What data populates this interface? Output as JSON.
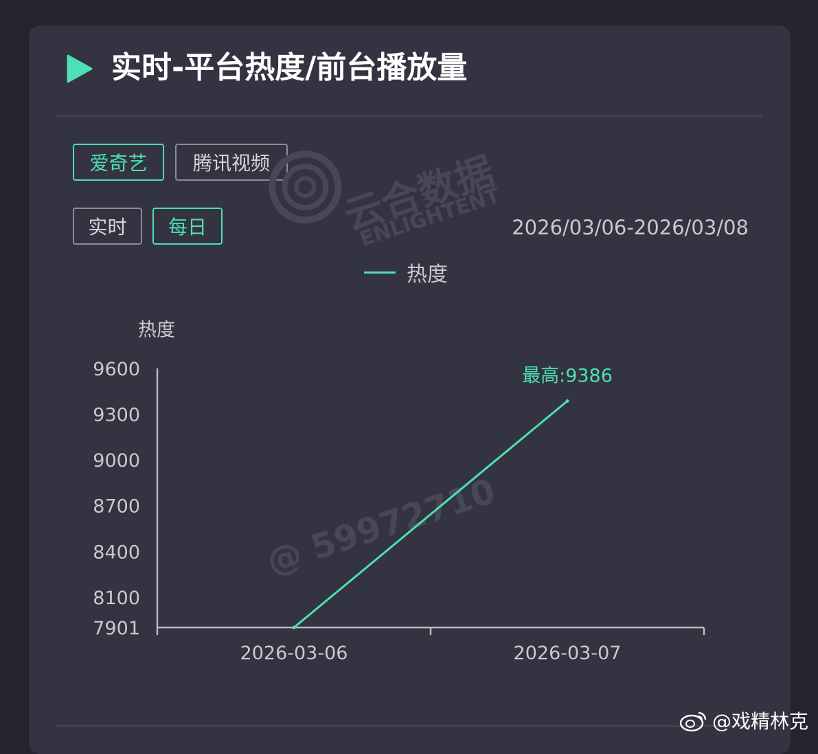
{
  "header": {
    "title": "实时-平台热度/前台播放量"
  },
  "platform_tabs": [
    {
      "label": "爱奇艺",
      "active": true
    },
    {
      "label": "腾讯视频",
      "active": false
    }
  ],
  "period_tabs": [
    {
      "label": "实时",
      "active": false
    },
    {
      "label": "每日",
      "active": true
    }
  ],
  "date_range": "2026/03/06-2026/03/08",
  "watermark": {
    "brand": "云合数据",
    "brand_en": "ENLIGHTENT",
    "user_id": "@ 59972710"
  },
  "footer": {
    "credit": "@戏精林克",
    "icon": "weibo-icon"
  },
  "colors": {
    "accent": "#4ddfb5",
    "background": "#333341",
    "axis": "#b9b9c0"
  },
  "chart_data": {
    "type": "line",
    "title": "",
    "ylabel": "热度",
    "xlabel": "",
    "categories": [
      "2026-03-06",
      "2026-03-07"
    ],
    "series": [
      {
        "name": "热度",
        "values": [
          7901,
          9386
        ]
      }
    ],
    "y_ticks": [
      7901,
      8100,
      8400,
      8700,
      9000,
      9300,
      9600
    ],
    "ylim": [
      7901,
      9600
    ],
    "grid": false,
    "legend": "top-center",
    "annotation": {
      "label": "最高:9386",
      "category": "2026-03-07",
      "value": 9386
    }
  }
}
